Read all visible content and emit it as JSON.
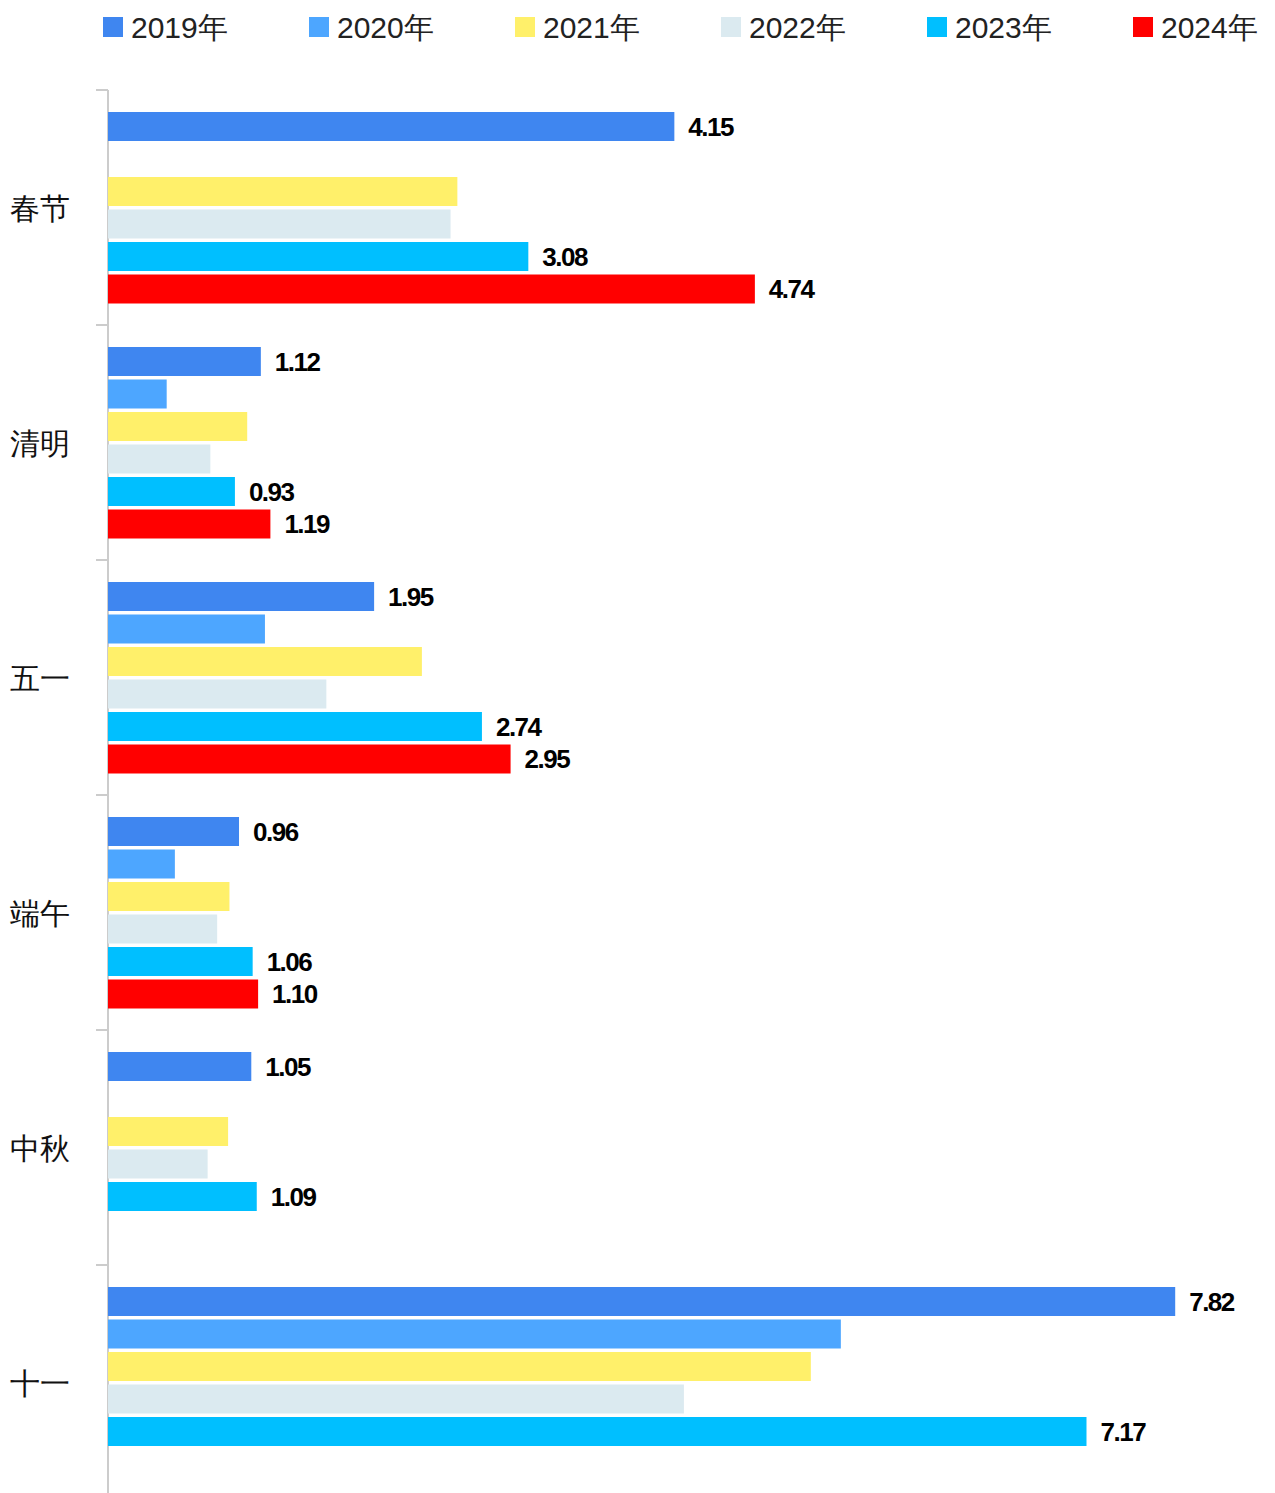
{
  "chart_data": {
    "type": "bar",
    "orientation": "horizontal",
    "data_labels": true,
    "tick_labels": "y",
    "grid": false,
    "legend": "top",
    "categories": [
      "春节",
      "清明",
      "五一",
      "端午",
      "中秋",
      "十一"
    ],
    "xlim": [
      0,
      8.5
    ],
    "series": [
      {
        "name": "2019年",
        "color": "#3f86f0",
        "values": [
          4.15,
          1.12,
          1.95,
          0.96,
          1.05,
          7.82
        ],
        "value_labels": [
          "4.15",
          "1.12",
          "1.95",
          "0.96",
          "1.05",
          "7.82"
        ]
      },
      {
        "name": "2020年",
        "color": "#4da6ff",
        "values": [
          null,
          0.43,
          1.15,
          0.49,
          null,
          5.37
        ],
        "value_labels": [
          null,
          null,
          null,
          null,
          null,
          null
        ]
      },
      {
        "name": "2021年",
        "color": "#fff06a",
        "values": [
          2.56,
          1.02,
          2.3,
          0.89,
          0.88,
          5.15
        ],
        "value_labels": [
          null,
          null,
          null,
          null,
          null,
          null
        ]
      },
      {
        "name": "2022年",
        "color": "#dbeaf0",
        "values": [
          2.51,
          0.75,
          1.6,
          0.8,
          0.73,
          4.22
        ],
        "value_labels": [
          null,
          null,
          null,
          null,
          null,
          null
        ]
      },
      {
        "name": "2023年",
        "color": "#00bfff",
        "values": [
          3.08,
          0.93,
          2.74,
          1.06,
          1.09,
          7.17
        ],
        "value_labels": [
          "3.08",
          "0.93",
          "2.74",
          "1.06",
          "1.09",
          "7.17"
        ]
      },
      {
        "name": "2024年",
        "color": "#ff0000",
        "values": [
          4.74,
          1.19,
          2.95,
          1.1,
          null,
          null
        ],
        "value_labels": [
          "4.74",
          "1.19",
          "2.95",
          "1.10",
          null,
          null
        ]
      }
    ]
  }
}
